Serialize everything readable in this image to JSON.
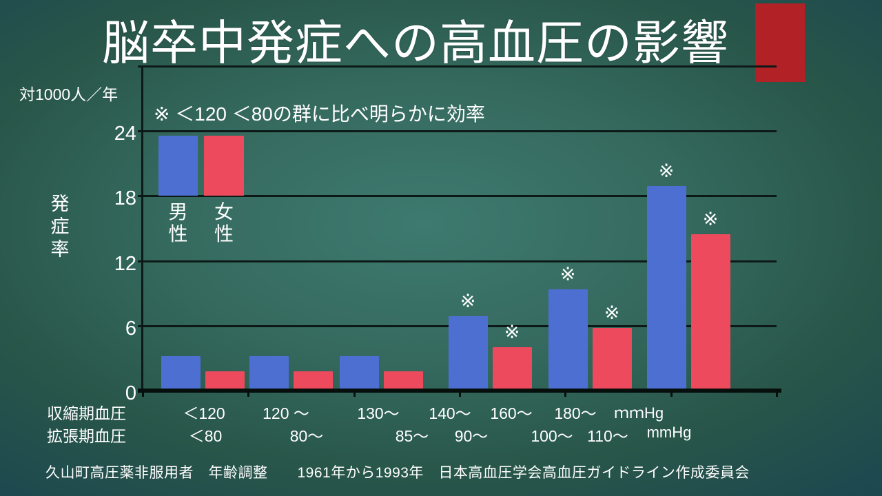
{
  "slide": {
    "title": "脳卒中発症への高血圧の影響",
    "footer": "久山町高圧薬非服用者　年齢調整　　1961年から1993年　日本高血圧学会高血圧ガイドライン作成委員会"
  },
  "chart_data": {
    "type": "bar",
    "title": "脳卒中発症への高血圧の影響",
    "unit_label": "対1000人／年",
    "ylabel": "発症率",
    "annotation": "※ ＜120 ＜80の群に比べ明らかに効率",
    "significance_marker": "※",
    "ylim": [
      0,
      30
    ],
    "yticks": [
      24,
      18,
      12,
      6,
      0
    ],
    "grid": true,
    "legend_position": "top-left-inside",
    "categories_systolic": [
      "＜120",
      "120 ～",
      "130～",
      "140～",
      "160～",
      "180～"
    ],
    "categories_diastolic": [
      "＜80",
      "80～",
      "85～",
      "90～",
      "100～",
      "110～"
    ],
    "x_axis_rows": [
      {
        "label": "収縮期血圧",
        "ticks": [
          "＜120",
          "120 ～",
          "130～",
          "140～",
          "160～",
          "180～"
        ],
        "unit": "ｍｍHg"
      },
      {
        "label": "拡張期血圧",
        "ticks": [
          "＜80",
          "80～",
          "85～",
          "90～",
          "100～",
          "110～"
        ],
        "unit": "mmHg"
      }
    ],
    "series": [
      {
        "name": "男性",
        "color": "#4e6fd2",
        "values": [
          3.0,
          3.0,
          3.0,
          6.7,
          9.2,
          18.7
        ],
        "significant": [
          false,
          false,
          false,
          true,
          true,
          true
        ]
      },
      {
        "name": "女性",
        "color": "#ee4a5e",
        "values": [
          1.6,
          1.6,
          1.6,
          3.8,
          5.6,
          14.3
        ],
        "significant": [
          false,
          false,
          false,
          true,
          true,
          true
        ]
      }
    ]
  },
  "colors": {
    "male_bar": "#4e6fd2",
    "female_bar": "#ee4a5e",
    "accent_rect": "#b22126",
    "background_center": "#3e7a6f",
    "background_edge": "#113344",
    "gridline": "#0d1916",
    "text": "#ffffff"
  }
}
